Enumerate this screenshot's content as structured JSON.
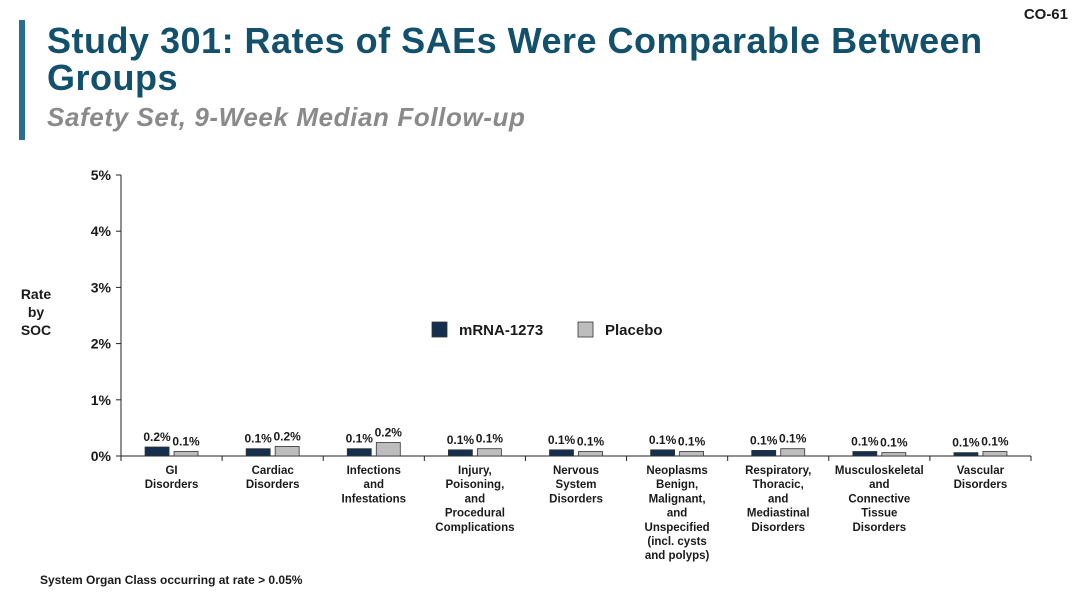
{
  "slide": {
    "id": "CO-61",
    "title": "Study 301: Rates of SAEs Were Comparable Between Groups",
    "subtitle": "Safety Set, 9-Week Median Follow-up",
    "footnote": "System Organ Class occurring at rate > 0.05%"
  },
  "colors": {
    "accent": "#2a6f8f",
    "title": "#12506b",
    "mrna": "#15304f",
    "placebo": "#bdbdbd"
  },
  "chart_data": {
    "type": "bar",
    "ylabel": "Rate\nby\nSOC",
    "ylim": [
      0,
      5
    ],
    "yticks": [
      "0%",
      "1%",
      "2%",
      "3%",
      "4%",
      "5%"
    ],
    "grid": false,
    "legend_position": "center",
    "categories": [
      "GI\nDisorders",
      "Cardiac\nDisorders",
      "Infections\nand\nInfestations",
      "Injury,\nPoisoning,\nand\nProcedural\nComplications",
      "Nervous\nSystem\nDisorders",
      "Neoplasms\nBenign,\nMalignant,\nand\nUnspecified\n(incl. cysts\nand polyps)",
      "Respiratory,\nThoracic,\nand\nMediastinal\nDisorders",
      "Musculoskeletal\nand\nConnective\nTissue\nDisorders",
      "Vascular\nDisorders"
    ],
    "series": [
      {
        "name": "mRNA-1273",
        "values": [
          0.16,
          0.13,
          0.13,
          0.11,
          0.11,
          0.11,
          0.1,
          0.08,
          0.06
        ],
        "labels": [
          "0.2%",
          "0.1%",
          "0.1%",
          "0.1%",
          "0.1%",
          "0.1%",
          "0.1%",
          "0.1%",
          "0.1%"
        ]
      },
      {
        "name": "Placebo",
        "values": [
          0.08,
          0.17,
          0.24,
          0.13,
          0.08,
          0.08,
          0.13,
          0.06,
          0.08
        ],
        "labels": [
          "0.1%",
          "0.2%",
          "0.2%",
          "0.1%",
          "0.1%",
          "0.1%",
          "0.1%",
          "0.1%",
          "0.1%"
        ]
      }
    ]
  }
}
